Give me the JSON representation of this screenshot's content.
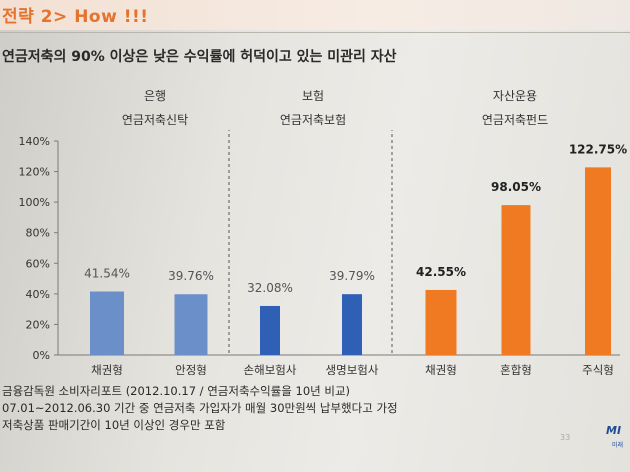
{
  "header": {
    "title": "전략 2> How !!!"
  },
  "headline": "연금저축의 90% 이상은 낮은 수익률에 허덕이고 있는 미관리 자산",
  "groups": [
    {
      "line1": "은행",
      "line2": "연금저축신탁"
    },
    {
      "line1": "보험",
      "line2": "연금저축보험"
    },
    {
      "line1": "자산운용",
      "line2": "연금저축펀드"
    }
  ],
  "colors": {
    "bank": "#6b8fc9",
    "insurance": "#2f60b5",
    "fund": "#f07a22"
  },
  "chart_data": {
    "type": "bar",
    "categories": [
      "채권형",
      "안정형",
      "손해보험사",
      "생명보험사",
      "채권형",
      "혼합형",
      "주식형"
    ],
    "values": [
      41.54,
      39.76,
      32.08,
      39.79,
      42.55,
      98.05,
      122.75
    ],
    "value_labels": [
      "41.54%",
      "39.76%",
      "32.08%",
      "39.79%",
      "42.55%",
      "98.05%",
      "122.75%"
    ],
    "series_group": [
      "bank",
      "bank",
      "insurance",
      "insurance",
      "fund",
      "fund",
      "fund"
    ],
    "yticks": [
      "0%",
      "20%",
      "40%",
      "60%",
      "80%",
      "100%",
      "120%",
      "140%"
    ],
    "ylim": [
      0,
      140
    ],
    "grid": false
  },
  "footer": {
    "source": "금융감독원 소비자리포트 (2012.10.17 / 연금저축수익률을 10년 비교)",
    "note1": "07.01~2012.06.30 기간 중 연금저축 가입자가 매월 30만원씩 납부했다고 가정",
    "note2": "저축상품 판매기간이 10년 이상인 경우만 포함"
  },
  "page_number": "33",
  "logo": "MI",
  "logo_sub": "미래"
}
